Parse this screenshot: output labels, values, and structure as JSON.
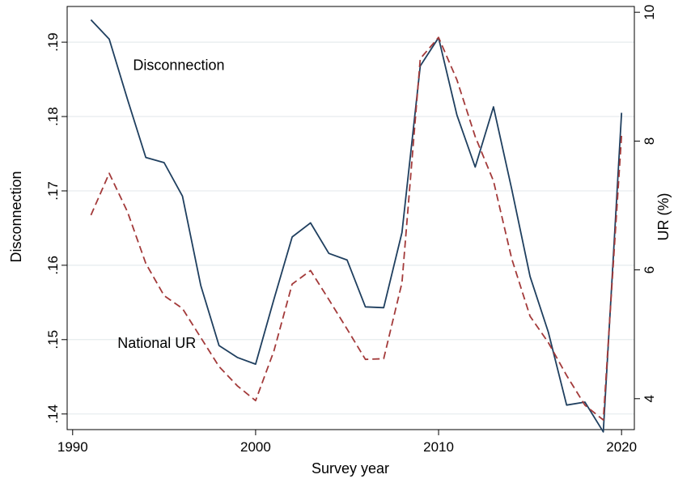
{
  "chart_data": {
    "type": "line",
    "title": "",
    "xlabel": "Survey year",
    "ylabel_left": "Disconnection",
    "ylabel_right": "UR (%)",
    "xlim": [
      1989.7,
      2020.7
    ],
    "ylim_left": [
      0.1379,
      0.1948
    ],
    "ylim_right": [
      3.52,
      10.09
    ],
    "x_ticks": [
      1990,
      2000,
      2010,
      2020
    ],
    "y_left_ticks": [
      0.14,
      0.15,
      0.16,
      0.17,
      0.18,
      0.19
    ],
    "y_left_tick_labels": [
      ".14",
      ".15",
      ".16",
      ".17",
      ".18",
      ".19"
    ],
    "y_right_ticks": [
      4,
      6,
      8,
      10
    ],
    "y_right_tick_labels": [
      "4",
      "6",
      "8",
      "10"
    ],
    "grid": true,
    "legend": "none",
    "series": [
      {
        "name": "Disconnection",
        "axis": "left",
        "color": "#1f3f5f",
        "dash": "solid",
        "x": [
          1991,
          1992,
          1993,
          1994,
          1995,
          1996,
          1997,
          1998,
          1999,
          2000,
          2001,
          2002,
          2003,
          2004,
          2005,
          2006,
          2007,
          2008,
          2009,
          2010,
          2011,
          2012,
          2013,
          2014,
          2015,
          2016,
          2017,
          2018,
          2019,
          2020
        ],
        "values": [
          0.193,
          0.1904,
          0.1823,
          0.1745,
          0.1738,
          0.1693,
          0.1573,
          0.1492,
          0.1476,
          0.1467,
          0.1554,
          0.1638,
          0.1657,
          0.1616,
          0.1607,
          0.1544,
          0.1543,
          0.1644,
          0.1868,
          0.1906,
          0.1802,
          0.1732,
          0.1813,
          0.1702,
          0.1585,
          0.151,
          0.1412,
          0.1416,
          0.1376,
          0.1805
        ]
      },
      {
        "name": "National UR",
        "axis": "right",
        "color": "#a33a3a",
        "dash": "dashed",
        "x": [
          1991,
          1992,
          1993,
          1994,
          1995,
          1996,
          1997,
          1998,
          1999,
          2000,
          2001,
          2002,
          2003,
          2004,
          2005,
          2006,
          2007,
          2008,
          2009,
          2010,
          2011,
          2012,
          2013,
          2014,
          2015,
          2016,
          2017,
          2018,
          2019,
          2020
        ],
        "values": [
          6.85,
          7.5,
          6.9,
          6.1,
          5.6,
          5.4,
          4.95,
          4.5,
          4.2,
          3.97,
          4.74,
          5.78,
          5.99,
          5.54,
          5.08,
          4.61,
          4.62,
          5.8,
          9.28,
          9.61,
          8.95,
          8.07,
          7.38,
          6.17,
          5.28,
          4.87,
          4.36,
          3.9,
          3.67,
          8.09
        ]
      }
    ],
    "annotations": [
      {
        "text": "Disconnection",
        "x": 1995.8,
        "y_left": 0.1868
      },
      {
        "text": "National UR",
        "x": 1994.6,
        "y_left": 0.1494
      }
    ]
  }
}
